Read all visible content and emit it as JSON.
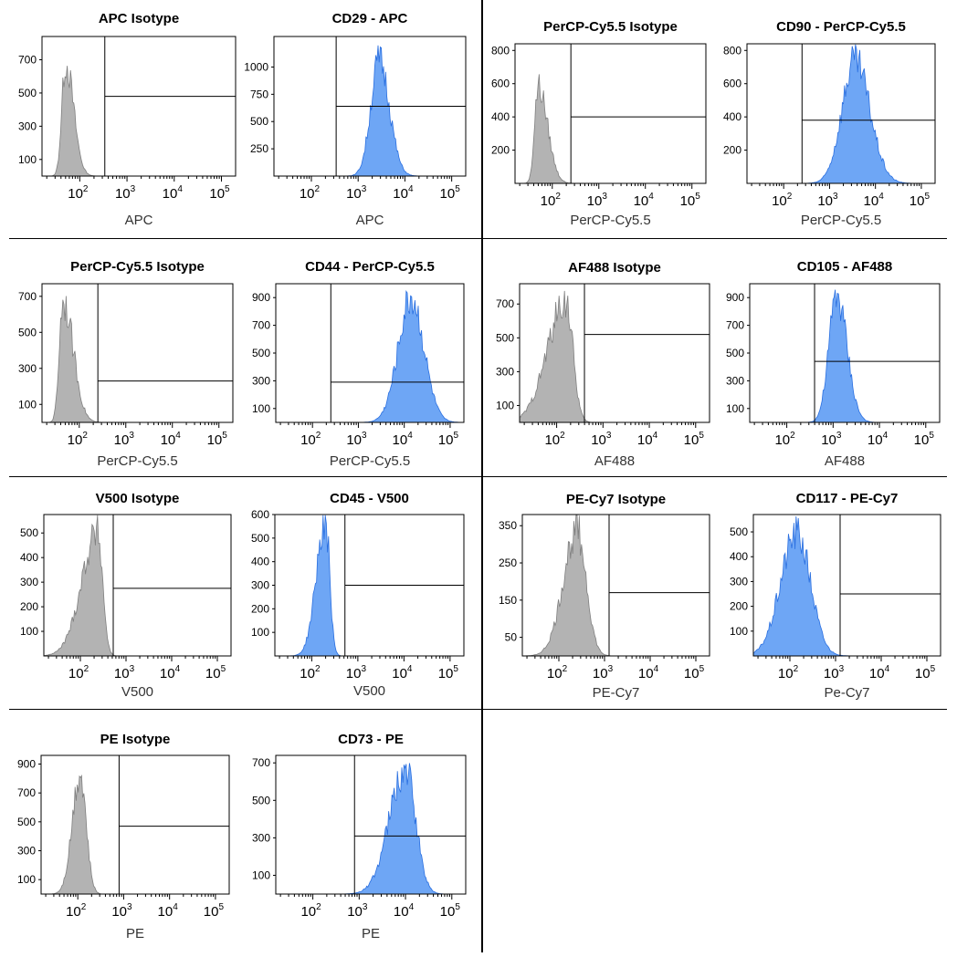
{
  "figure": {
    "description_title": "",
    "x_tick_labels": [
      "10",
      "10",
      "10",
      "10"
    ],
    "x_tick_exponents": [
      "2",
      "3",
      "4",
      "5"
    ]
  },
  "chart_data": [
    {
      "id": "p1",
      "type": "histogram",
      "title": "APC Isotype",
      "xlabel": "APC",
      "fill": "#b3b3b3",
      "stroke": "#7f7f7f",
      "ylim": [
        0,
        840
      ],
      "yticks": [
        100,
        300,
        500,
        700
      ],
      "peak": {
        "center": 1.7,
        "width_left": 0.08,
        "width_right": 0.17,
        "height": 700
      },
      "gate": {
        "x": 2.53,
        "level": 480
      }
    },
    {
      "id": "p2",
      "type": "histogram",
      "title": "CD29 - APC",
      "xlabel": "APC",
      "fill": "#6ea6f5",
      "stroke": "#2a6fe0",
      "ylim": [
        0,
        1280
      ],
      "yticks": [
        250,
        500,
        750,
        1000
      ],
      "peak": {
        "center": 3.45,
        "width_left": 0.18,
        "width_right": 0.22,
        "height": 1100
      },
      "gate": {
        "x": 2.53,
        "level": 640
      }
    },
    {
      "id": "p3",
      "type": "histogram",
      "title": "PerCP-Cy5.5 Isotype",
      "xlabel": "PerCP-Cy5.5",
      "fill": "#b3b3b3",
      "stroke": "#7f7f7f",
      "ylim": [
        0,
        840
      ],
      "yticks": [
        200,
        400,
        600,
        800
      ],
      "peak": {
        "center": 1.7,
        "width_left": 0.08,
        "width_right": 0.2,
        "height": 600
      },
      "gate": {
        "x": 2.4,
        "level": 400
      }
    },
    {
      "id": "p4",
      "type": "histogram",
      "title": "CD90 - PerCP-Cy5.5",
      "xlabel": "PerCP-Cy5.5",
      "fill": "#6ea6f5",
      "stroke": "#2a6fe0",
      "ylim": [
        0,
        840
      ],
      "yticks": [
        200,
        400,
        600,
        800
      ],
      "peak": {
        "center": 3.55,
        "width_left": 0.28,
        "width_right": 0.33,
        "height": 760
      },
      "gate": {
        "x": 2.4,
        "level": 380
      }
    },
    {
      "id": "p5",
      "type": "histogram",
      "title": "PerCP-Cy5.5 Isotype",
      "xlabel": "PerCP-Cy5.5",
      "fill": "#b3b3b3",
      "stroke": "#7f7f7f",
      "ylim": [
        0,
        770
      ],
      "yticks": [
        100,
        300,
        500,
        700
      ],
      "peak": {
        "center": 1.65,
        "width_left": 0.08,
        "width_right": 0.22,
        "height": 700
      },
      "gate": {
        "x": 2.4,
        "level": 230
      }
    },
    {
      "id": "p6",
      "type": "histogram",
      "title": "CD44 - PerCP-Cy5.5",
      "xlabel": "PerCP-Cy5.5",
      "fill": "#6ea6f5",
      "stroke": "#2a6fe0",
      "ylim": [
        0,
        1000
      ],
      "yticks": [
        100,
        300,
        500,
        700,
        900
      ],
      "peak": {
        "center": 4.15,
        "width_left": 0.28,
        "width_right": 0.28,
        "height": 930
      },
      "gate": {
        "x": 2.4,
        "level": 290
      }
    },
    {
      "id": "p7",
      "type": "histogram",
      "title": "AF488 Isotype",
      "xlabel": "AF488",
      "fill": "#b3b3b3",
      "stroke": "#7f7f7f",
      "ylim": [
        0,
        820
      ],
      "yticks": [
        100,
        300,
        500,
        700
      ],
      "peak": {
        "center": 2.2,
        "width_left": 0.4,
        "width_right": 0.15,
        "height": 740
      },
      "gate": {
        "x": 2.6,
        "level": 520
      }
    },
    {
      "id": "p8",
      "type": "histogram",
      "title": "CD105 - AF488",
      "xlabel": "AF488",
      "fill": "#6ea6f5",
      "stroke": "#2a6fe0",
      "ylim": [
        0,
        1000
      ],
      "yticks": [
        100,
        300,
        500,
        700,
        900
      ],
      "peak": {
        "center": 3.08,
        "width_left": 0.17,
        "width_right": 0.22,
        "height": 950
      },
      "gate": {
        "x": 2.6,
        "level": 440
      }
    },
    {
      "id": "p9",
      "type": "histogram",
      "title": "V500 Isotype",
      "xlabel": "V500",
      "fill": "#b3b3b3",
      "stroke": "#7f7f7f",
      "ylim": [
        0,
        575
      ],
      "yticks": [
        100,
        200,
        300,
        400,
        500
      ],
      "peak": {
        "center": 2.38,
        "width_left": 0.35,
        "width_right": 0.11,
        "height": 520
      },
      "gate": {
        "x": 2.72,
        "level": 275
      }
    },
    {
      "id": "p10",
      "type": "histogram",
      "title": "CD45 - V500",
      "xlabel": "V500",
      "fill": "#6ea6f5",
      "stroke": "#2a6fe0",
      "ylim": [
        0,
        600
      ],
      "yticks": [
        100,
        200,
        300,
        400,
        500,
        600
      ],
      "peak": {
        "center": 2.3,
        "width_left": 0.2,
        "width_right": 0.09,
        "height": 590
      },
      "gate": {
        "x": 2.72,
        "level": 300
      }
    },
    {
      "id": "p11",
      "type": "histogram",
      "title": "PE-Cy7 Isotype",
      "xlabel": "PE-Cy7",
      "fill": "#b3b3b3",
      "stroke": "#7f7f7f",
      "ylim": [
        0,
        380
      ],
      "yticks": [
        50,
        150,
        250,
        350
      ],
      "peak": {
        "center": 2.4,
        "width_left": 0.3,
        "width_right": 0.2,
        "height": 350
      },
      "gate": {
        "x": 3.1,
        "level": 170
      }
    },
    {
      "id": "p12",
      "type": "histogram",
      "title": "CD117 - PE-Cy7",
      "xlabel": "Pe-Cy7",
      "fill": "#6ea6f5",
      "stroke": "#2a6fe0",
      "ylim": [
        0,
        570
      ],
      "yticks": [
        100,
        200,
        300,
        400,
        500
      ],
      "peak": {
        "center": 2.15,
        "width_left": 0.35,
        "width_right": 0.3,
        "height": 510
      },
      "gate": {
        "x": 3.1,
        "level": 250
      }
    },
    {
      "id": "p13",
      "type": "histogram",
      "title": "PE Isotype",
      "xlabel": "PE",
      "fill": "#b3b3b3",
      "stroke": "#7f7f7f",
      "ylim": [
        0,
        960
      ],
      "yticks": [
        100,
        300,
        500,
        700,
        900
      ],
      "peak": {
        "center": 2.05,
        "width_left": 0.17,
        "width_right": 0.13,
        "height": 870
      },
      "gate": {
        "x": 2.9,
        "level": 470
      }
    },
    {
      "id": "p14",
      "type": "histogram",
      "title": "CD73 - PE",
      "xlabel": "PE",
      "fill": "#6ea6f5",
      "stroke": "#2a6fe0",
      "ylim": [
        0,
        740
      ],
      "yticks": [
        100,
        300,
        500,
        700
      ],
      "peak": {
        "center": 4.0,
        "width_left": 0.35,
        "width_right": 0.22,
        "height": 680
      },
      "gate": {
        "x": 2.9,
        "level": 310
      }
    }
  ]
}
